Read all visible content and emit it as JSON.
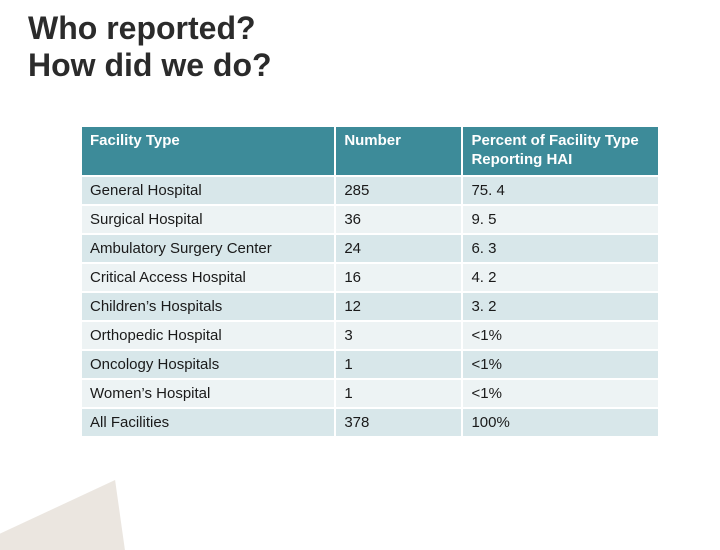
{
  "title": {
    "line1": "Who reported?",
    "line2": "How did we do?",
    "fontsize": 32,
    "color": "#2b2b2b"
  },
  "table": {
    "type": "table",
    "header_bg": "#3d8b99",
    "header_text_color": "#ffffff",
    "row_odd_bg": "#d8e7ea",
    "row_even_bg": "#edf3f4",
    "border_color": "#ffffff",
    "font_size": 15,
    "columns": [
      {
        "label": "Facility Type",
        "width_pct": 44,
        "align": "left"
      },
      {
        "label": "Number",
        "width_pct": 22,
        "align": "left"
      },
      {
        "label": "Percent of Facility Type Reporting HAI",
        "width_pct": 34,
        "align": "left"
      }
    ],
    "rows": [
      [
        "General Hospital",
        "285",
        "75. 4"
      ],
      [
        "Surgical Hospital",
        "36",
        "9. 5"
      ],
      [
        "Ambulatory Surgery Center",
        "24",
        "6. 3"
      ],
      [
        "Critical Access Hospital",
        "16",
        "4. 2"
      ],
      [
        "Children’s Hospitals",
        "12",
        "3. 2"
      ],
      [
        "Orthopedic Hospital",
        "3",
        "<1%"
      ],
      [
        "Oncology Hospitals",
        "1",
        "<1%"
      ],
      [
        "Women’s Hospital",
        "1",
        "<1%"
      ],
      [
        "All Facilities",
        "378",
        "100%"
      ]
    ]
  },
  "decoration": {
    "triangle_color": "#e8e2da"
  }
}
